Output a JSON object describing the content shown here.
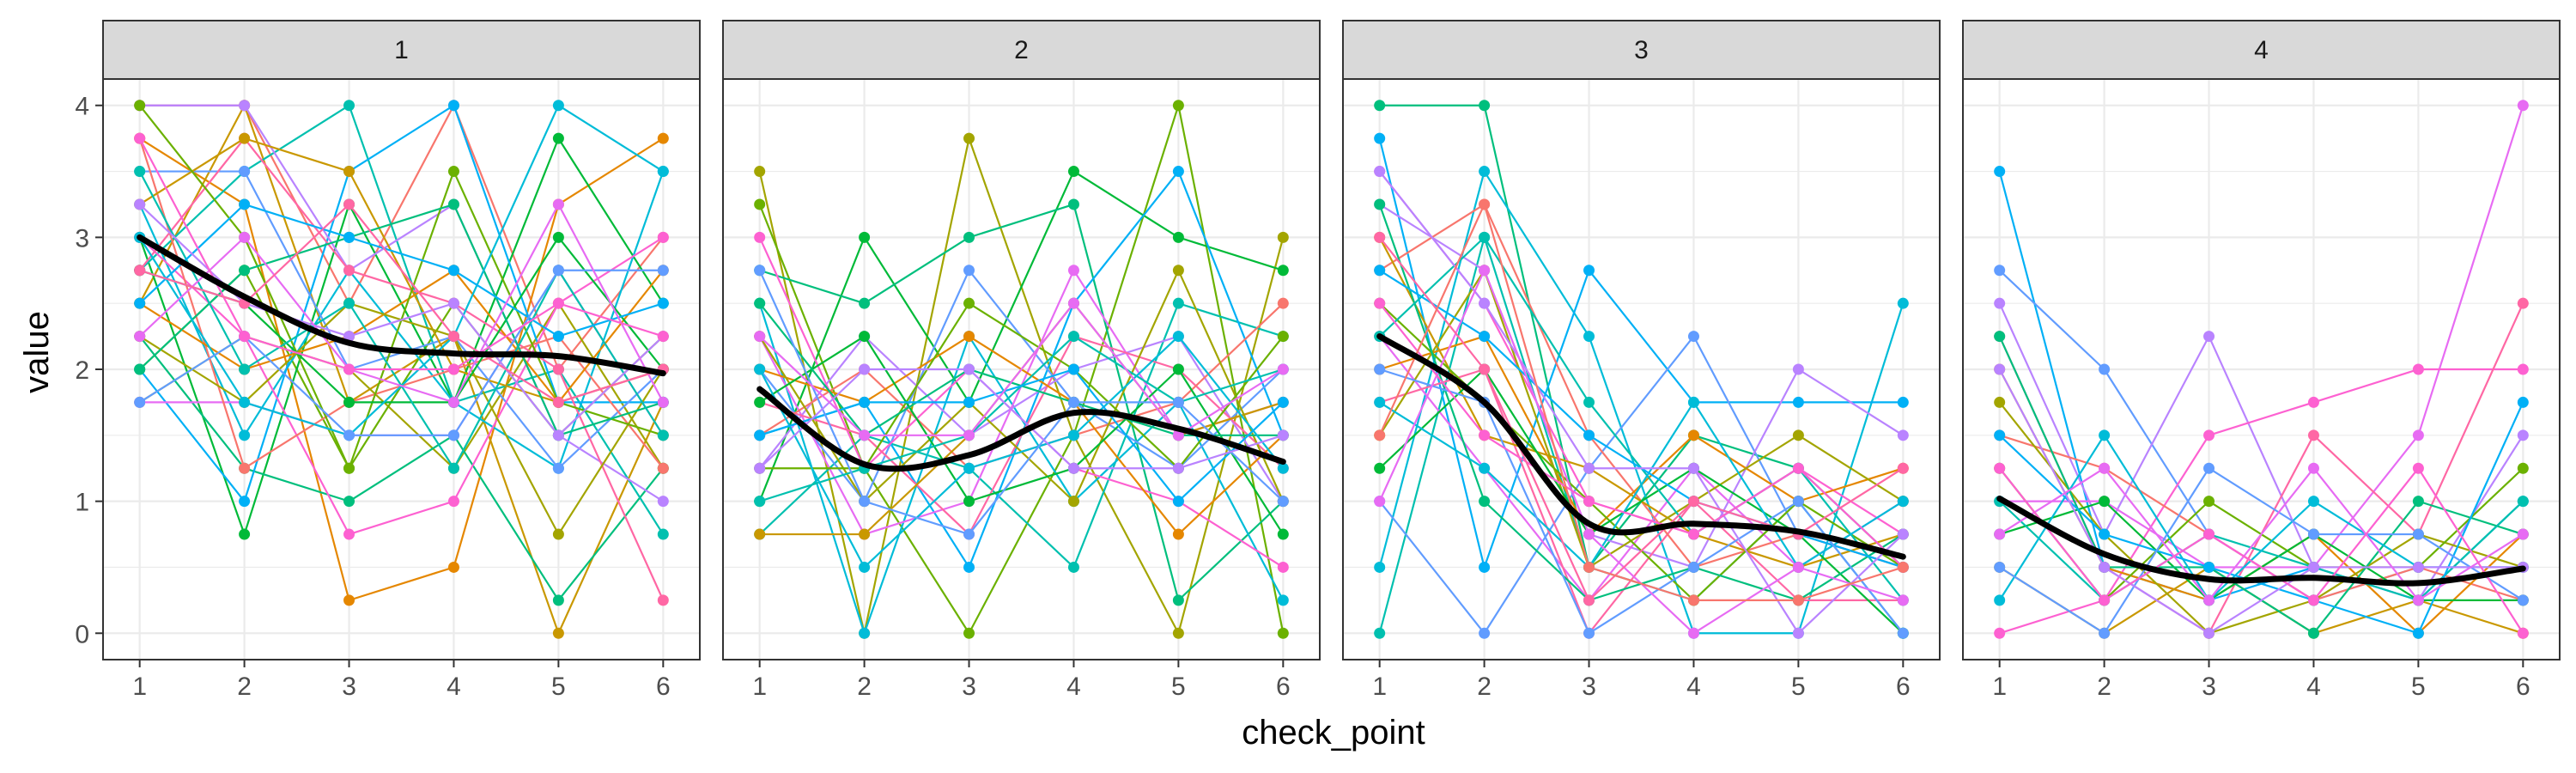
{
  "chart_data": {
    "type": "line",
    "facet_variable": "",
    "xlabel": "check_point",
    "ylabel": "value",
    "x_ticks": [
      1,
      2,
      3,
      4,
      5,
      6
    ],
    "y_ticks": [
      0,
      1,
      2,
      3,
      4
    ],
    "xlim": [
      0.65,
      6.35
    ],
    "ylim": [
      -0.2,
      4.2
    ],
    "grid": true,
    "legend": "none",
    "smooth_color": "#000000",
    "panel_strip_color": "#d9d9d9",
    "series_palette": [
      "#F8766D",
      "#E58700",
      "#C99800",
      "#A3A500",
      "#6BB100",
      "#00BA38",
      "#00BF7D",
      "#00C0AF",
      "#00BCD8",
      "#00B0F6",
      "#619CFF",
      "#B983FF",
      "#E76BF3",
      "#FD61D1",
      "#FF67A4"
    ],
    "panels": [
      {
        "label": "1",
        "smooth": [
          3.0,
          2.55,
          2.2,
          2.12,
          2.1,
          1.97
        ],
        "series": [
          [
            4,
            4,
            2.5,
            4,
            2,
            3
          ],
          [
            3.75,
            3.25,
            0.25,
            0.5,
            3.25,
            3.75
          ],
          [
            2.5,
            4,
            1.75,
            2.25,
            0,
            1.75
          ],
          [
            1.75,
            2.25,
            2,
            1.25,
            2.5,
            1.25
          ],
          [
            2,
            2.75,
            1.25,
            2.5,
            1.5,
            2.25
          ],
          [
            3,
            0.75,
            3.25,
            1.75,
            3.75,
            2.5
          ],
          [
            2.25,
            1.25,
            1,
            1.5,
            0.25,
            1.25
          ],
          [
            2.75,
            3.5,
            4,
            1.75,
            2,
            0.75
          ],
          [
            3.25,
            1.5,
            2.75,
            1.75,
            1.25,
            3.5
          ],
          [
            2,
            1,
            3.5,
            4,
            1.75,
            1.75
          ],
          [
            3.5,
            3.5,
            2,
            2.25,
            1.25,
            2
          ],
          [
            4,
            4,
            2.75,
            3.25,
            1.5,
            1
          ],
          [
            1.75,
            1.75,
            1.5,
            1.5,
            2.75,
            1.5
          ],
          [
            3,
            2.25,
            0.75,
            1,
            2.5,
            3
          ],
          [
            2.75,
            3.75,
            2.75,
            2.5,
            2,
            0.25
          ],
          [
            3.75,
            1.25,
            1.75,
            2,
            2.25,
            1.25
          ],
          [
            2.5,
            2,
            2.25,
            2.75,
            1.75,
            2.75
          ],
          [
            3.25,
            3.75,
            3.5,
            2,
            1.75,
            2
          ],
          [
            2.25,
            1.75,
            2.5,
            2.25,
            0.75,
            2
          ],
          [
            4,
            3,
            1.25,
            3.5,
            1.75,
            1.5
          ],
          [
            2.75,
            2.5,
            1.75,
            1.75,
            3,
            2
          ],
          [
            2,
            2.75,
            3,
            3.25,
            1.5,
            1.75
          ],
          [
            3.5,
            2,
            2.5,
            1.25,
            2.75,
            1.5
          ],
          [
            3,
            1.75,
            1.5,
            2.25,
            4,
            3.5
          ],
          [
            2.5,
            3.25,
            3,
            2.75,
            2.25,
            2.5
          ],
          [
            1.75,
            2.25,
            1.5,
            1.5,
            2.75,
            2.75
          ],
          [
            3.25,
            2.5,
            2.25,
            2.5,
            1.5,
            2.25
          ],
          [
            2.25,
            3,
            2,
            1.75,
            3.25,
            1.75
          ],
          [
            3.75,
            2.25,
            2,
            2,
            2.5,
            2.25
          ],
          [
            2.75,
            2.5,
            3.25,
            2.25,
            1.75,
            2
          ]
        ]
      },
      {
        "label": "2",
        "smooth": [
          1.85,
          1.28,
          1.35,
          1.67,
          1.55,
          1.3
        ],
        "series": [
          [
            3.5,
            0,
            3.75,
            1.5,
            0,
            3
          ],
          [
            3.25,
            1.25,
            0,
            1.5,
            4,
            0
          ],
          [
            1,
            3,
            1.75,
            3.5,
            3,
            2.75
          ],
          [
            2.75,
            2.5,
            3,
            3.25,
            0.25,
            1
          ],
          [
            0.75,
            1.5,
            1.25,
            0.5,
            2.5,
            2.25
          ],
          [
            2.5,
            0,
            2.25,
            1,
            1.75,
            0.25
          ],
          [
            1.5,
            1.75,
            0.5,
            2.5,
            3.5,
            1.5
          ],
          [
            2,
            1,
            2.75,
            1.75,
            1.25,
            2
          ],
          [
            1.25,
            2.25,
            1.5,
            2,
            2.25,
            1
          ],
          [
            2.25,
            0.75,
            1,
            2.75,
            1.5,
            1.75
          ],
          [
            3,
            1.25,
            2,
            1.25,
            1,
            0.5
          ],
          [
            1.75,
            1.5,
            0.75,
            2.25,
            2,
            1.25
          ],
          [
            1.5,
            2,
            1.25,
            1.5,
            1.75,
            2.5
          ],
          [
            2,
            1.75,
            2.25,
            1.75,
            0.75,
            1.5
          ],
          [
            0.75,
            0.75,
            1.5,
            2.5,
            1.5,
            1.75
          ],
          [
            2.25,
            1,
            1.75,
            1,
            2.75,
            1
          ],
          [
            1.25,
            1.25,
            2.5,
            2,
            1.25,
            2.25
          ],
          [
            1.75,
            2.25,
            1,
            1.25,
            2,
            0.75
          ],
          [
            2.5,
            1.5,
            2,
            1.75,
            1.5,
            1.5
          ],
          [
            1,
            1.25,
            1.5,
            2.25,
            1.75,
            2
          ],
          [
            2,
            0.5,
            1.25,
            1.5,
            2.25,
            1.25
          ],
          [
            1.5,
            1.75,
            1.75,
            2,
            1,
            1.75
          ],
          [
            2.75,
            1,
            0.75,
            1.75,
            1.75,
            1
          ],
          [
            1.25,
            2,
            2,
            1.25,
            1.25,
            1.5
          ],
          [
            2.25,
            1.5,
            1.5,
            2.5,
            1.5,
            2
          ]
        ]
      },
      {
        "label": "3",
        "smooth": [
          2.25,
          1.75,
          0.83,
          0.83,
          0.77,
          0.58
        ],
        "series": [
          [
            4,
            4,
            0.5,
            1.5,
            1.25,
            0.5
          ],
          [
            0,
            3,
            0.5,
            0.25,
            1,
            0
          ],
          [
            0.5,
            3.5,
            2.25,
            0,
            0,
            2.5
          ],
          [
            3.75,
            0.5,
            2.75,
            1.75,
            1.75,
            1.75
          ],
          [
            1,
            0,
            1.25,
            2.25,
            0.75,
            0.5
          ],
          [
            3.25,
            2.75,
            0.75,
            0.5,
            2,
            1.5
          ],
          [
            2.25,
            1.25,
            0.25,
            1.25,
            0.5,
            1
          ],
          [
            3.5,
            2.5,
            1,
            0.75,
            1.25,
            0.75
          ],
          [
            1.75,
            2,
            0,
            1,
            0.25,
            0.25
          ],
          [
            2.75,
            3.25,
            1.5,
            0.5,
            0.75,
            0.5
          ],
          [
            2,
            2.25,
            0.75,
            1.5,
            1,
            1.25
          ],
          [
            3,
            1.5,
            1.25,
            0.75,
            0.5,
            0.75
          ],
          [
            1.5,
            2.75,
            0.5,
            1,
            1.5,
            1
          ],
          [
            2.5,
            1.75,
            1,
            0.25,
            1,
            0.5
          ],
          [
            1.25,
            2,
            0.75,
            1.25,
            0.75,
            0
          ],
          [
            3.25,
            1,
            0.25,
            0.5,
            0.25,
            0.75
          ],
          [
            2.25,
            3,
            1.75,
            0.75,
            1.25,
            0.25
          ],
          [
            1.75,
            1.25,
            0.5,
            1.75,
            0.5,
            1
          ],
          [
            2.75,
            2.25,
            1.5,
            1,
            0.75,
            0.5
          ],
          [
            2,
            1.75,
            0,
            0.5,
            1,
            0
          ],
          [
            3.5,
            2.5,
            1.25,
            1.25,
            0,
            0.75
          ],
          [
            1,
            2.75,
            0.75,
            0,
            0.5,
            0.25
          ],
          [
            2.5,
            1.5,
            1,
            0.75,
            1.25,
            0.5
          ],
          [
            3,
            2,
            0.25,
            1,
            0.75,
            1.25
          ],
          [
            1.5,
            3.25,
            0.5,
            0.25,
            0.25,
            0.5
          ]
        ]
      },
      {
        "label": "4",
        "smooth": [
          1.02,
          0.6,
          0.41,
          0.42,
          0.38,
          0.49
        ],
        "series": [
          [
            3.5,
            0.5,
            0.25,
            0.5,
            0.25,
            1
          ],
          [
            2.75,
            2,
            0.75,
            0.25,
            0.5,
            0.5
          ],
          [
            2.5,
            0.75,
            2.25,
            0.5,
            0.25,
            1.5
          ],
          [
            1,
            1,
            0.5,
            0.5,
            1.5,
            4
          ],
          [
            0,
            0.25,
            1.5,
            1.75,
            2,
            2
          ],
          [
            2.25,
            0.5,
            0,
            1.5,
            0.75,
            2.5
          ],
          [
            1.5,
            1.25,
            0.75,
            0.25,
            0.5,
            0.25
          ],
          [
            2,
            0.5,
            0.25,
            0.75,
            0,
            0.75
          ],
          [
            0.5,
            0,
            0.5,
            0,
            0.25,
            0
          ],
          [
            1.75,
            0.75,
            0,
            0.25,
            0.75,
            0.5
          ],
          [
            1.25,
            0.25,
            1,
            0.5,
            0.5,
            1.25
          ],
          [
            0.75,
            1,
            0.25,
            0.75,
            0.25,
            0.25
          ],
          [
            2.25,
            0.5,
            0.5,
            0,
            1,
            0.75
          ],
          [
            1,
            0.25,
            0.75,
            0.5,
            0.25,
            1
          ],
          [
            0.25,
            1.5,
            0.25,
            1,
            0.5,
            0.5
          ],
          [
            1.5,
            0.75,
            0.5,
            0.25,
            0,
            1.75
          ],
          [
            0.5,
            0,
            1.25,
            0.75,
            0.75,
            0.25
          ],
          [
            2,
            0.5,
            0,
            0.5,
            0.5,
            0.5
          ],
          [
            0.75,
            1.25,
            0.25,
            1.25,
            0.25,
            0.75
          ],
          [
            1.25,
            0.25,
            0.75,
            0.25,
            1.25,
            0
          ]
        ]
      }
    ]
  }
}
